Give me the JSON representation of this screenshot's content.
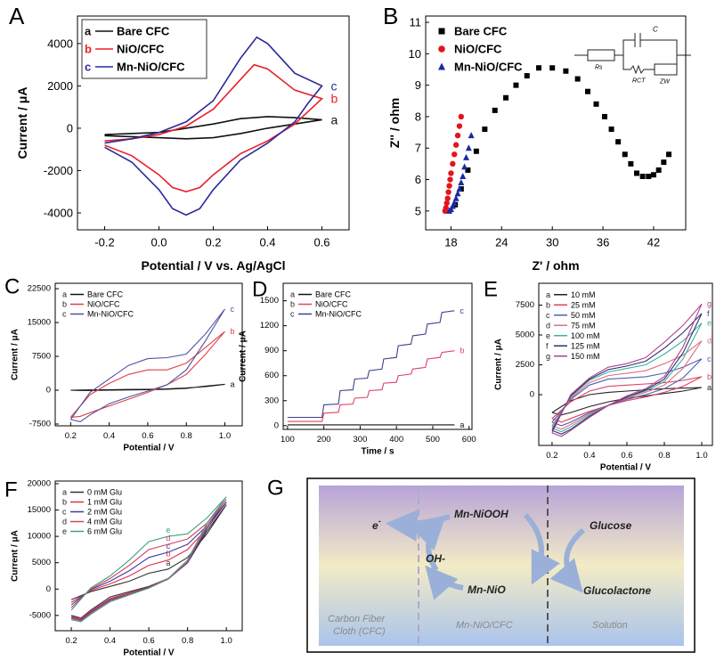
{
  "chart_data": [
    {
      "type": "line",
      "panel": "A",
      "xlabel": "Potential / V vs. Ag/AgCl",
      "ylabel": "Current / μA",
      "xlim": [
        -0.3,
        0.7
      ],
      "ylim": [
        -4800,
        5300
      ],
      "xticks": [
        -0.2,
        {
          "value": 0,
          "label": "0.0"
        },
        0.2,
        0.4,
        0.6
      ],
      "yticks": [
        -4000,
        -2000,
        0,
        2000,
        4000
      ],
      "legend": "upper left",
      "series": [
        {
          "name": "Bare CFC",
          "tag": "a",
          "color": "#111111",
          "x": [
            -0.2,
            0,
            0.2,
            0.3,
            0.4,
            0.5,
            0.6,
            0.5,
            0.4,
            0.3,
            0.2,
            0.1,
            0,
            -0.2
          ],
          "values": [
            -300,
            -200,
            200,
            450,
            550,
            500,
            400,
            200,
            0,
            -250,
            -450,
            -500,
            -450,
            -350
          ]
        },
        {
          "name": "NiO/CFC",
          "tag": "b",
          "color": "#e8202a",
          "x": [
            -0.2,
            -0.1,
            0,
            0.1,
            0.2,
            0.3,
            0.35,
            0.4,
            0.5,
            0.6,
            0.55,
            0.5,
            0.4,
            0.3,
            0.2,
            0.15,
            0.1,
            0.05,
            0,
            -0.1,
            -0.2
          ],
          "values": [
            -600,
            -500,
            -300,
            100,
            900,
            2300,
            3000,
            2800,
            1800,
            1400,
            800,
            200,
            -600,
            -1200,
            -2200,
            -2800,
            -3000,
            -2800,
            -2200,
            -1300,
            -800
          ]
        },
        {
          "name": "Mn-NiO/CFC",
          "tag": "c",
          "color": "#2a2a9a",
          "x": [
            -0.2,
            -0.1,
            0,
            0.1,
            0.2,
            0.3,
            0.36,
            0.4,
            0.5,
            0.6,
            0.55,
            0.5,
            0.4,
            0.3,
            0.2,
            0.15,
            0.1,
            0.05,
            0,
            -0.1,
            -0.2
          ],
          "values": [
            -700,
            -500,
            -200,
            300,
            1300,
            3300,
            4300,
            4000,
            2600,
            2000,
            1200,
            300,
            -700,
            -1500,
            -2900,
            -3800,
            -4100,
            -3800,
            -2900,
            -1600,
            -900
          ]
        }
      ]
    },
    {
      "type": "scatter",
      "panel": "B",
      "xlabel": "Z' / ohm",
      "ylabel": "Z'' / ohm",
      "xlim": [
        15,
        45.8
      ],
      "ylim": [
        4.4,
        11.2
      ],
      "xticks": [
        18,
        24,
        30,
        36,
        42
      ],
      "yticks": [
        5,
        6,
        7,
        8,
        9,
        10,
        11
      ],
      "legend": "upper left",
      "inset_labels": [
        "C",
        "Rs",
        "RCT",
        "ZW"
      ],
      "series": [
        {
          "name": "Bare CFC",
          "color": "#000000",
          "marker": "square",
          "x": [
            18.5,
            19.2,
            20.0,
            21.0,
            22.0,
            23.2,
            24.5,
            25.7,
            27.0,
            28.4,
            30.0,
            31.6,
            33.0,
            34.2,
            35.2,
            36.2,
            37.0,
            37.8,
            38.6,
            39.3,
            40.0,
            40.7,
            41.4,
            42.0,
            42.6,
            43.2,
            43.8
          ],
          "values": [
            5.2,
            5.7,
            6.3,
            6.9,
            7.6,
            8.2,
            8.6,
            9.0,
            9.3,
            9.55,
            9.55,
            9.45,
            9.2,
            8.8,
            8.4,
            8.0,
            7.6,
            7.2,
            6.8,
            6.5,
            6.2,
            6.1,
            6.1,
            6.15,
            6.3,
            6.55,
            6.8
          ]
        },
        {
          "name": "NiO/CFC",
          "color": "#e3141c",
          "marker": "circle",
          "x": [
            17.3,
            17.4,
            17.5,
            17.6,
            17.7,
            17.8,
            17.9,
            18.0,
            18.2,
            18.4,
            18.6,
            18.8,
            19.0,
            19.2
          ],
          "values": [
            5.0,
            5.1,
            5.25,
            5.4,
            5.6,
            5.8,
            6.0,
            6.2,
            6.5,
            6.8,
            7.1,
            7.4,
            7.7,
            8.0
          ]
        },
        {
          "name": "Mn-NiO/CFC",
          "color": "#1a2aa0",
          "marker": "triangle",
          "x": [
            17.8,
            18.0,
            18.2,
            18.4,
            18.6,
            18.8,
            19.0,
            19.2,
            19.4,
            19.6,
            19.8,
            20.1,
            20.4
          ],
          "values": [
            5.0,
            5.05,
            5.15,
            5.25,
            5.4,
            5.55,
            5.7,
            5.9,
            6.1,
            6.4,
            6.7,
            7.0,
            7.4
          ]
        }
      ]
    },
    {
      "type": "line",
      "panel": "C",
      "xlabel": "Potential / V",
      "ylabel": "Current / μA",
      "xlim": [
        0.12,
        1.09
      ],
      "ylim": [
        -7900,
        23700
      ],
      "xticks": [
        0.2,
        0.4,
        0.6,
        0.8,
        {
          "value": 1,
          "label": "1.0"
        }
      ],
      "yticks": [
        -7500,
        0,
        7500,
        15000,
        22500
      ],
      "legend": "upper left",
      "x": [
        0.2,
        0.3,
        0.4,
        0.5,
        0.6,
        0.7,
        0.8,
        0.9,
        1.0,
        0.9,
        0.8,
        0.7,
        0.6,
        0.5,
        0.4,
        0.3,
        0.25,
        0.2
      ],
      "series": [
        {
          "name": "Bare CFC",
          "tag": "a",
          "color": "#111111",
          "values": [
            0,
            50,
            100,
            150,
            200,
            300,
            500,
            800,
            1300,
            900,
            400,
            200,
            100,
            50,
            0,
            -50,
            -50,
            0
          ]
        },
        {
          "name": "NiO/CFC",
          "tag": "b",
          "color": "#e0404a",
          "values": [
            -6000,
            -1000,
            1500,
            3500,
            4500,
            4500,
            6000,
            9500,
            13000,
            8000,
            3500,
            1200,
            -500,
            -2000,
            -3500,
            -5000,
            -5800,
            -6000
          ]
        },
        {
          "name": "Mn-NiO/CFC",
          "tag": "c",
          "color": "#5050a0",
          "values": [
            -6500,
            -500,
            2500,
            5500,
            7000,
            7200,
            8000,
            12500,
            18000,
            11000,
            4500,
            1200,
            -200,
            -1500,
            -3000,
            -5500,
            -7000,
            -6500
          ]
        }
      ]
    },
    {
      "type": "line",
      "panel": "D",
      "xlabel": "Time / s",
      "ylabel": "Current / μA",
      "xlim": [
        88,
        608
      ],
      "ylim": [
        -45,
        1710
      ],
      "xticks": [
        100,
        200,
        300,
        400,
        500,
        600
      ],
      "yticks": [
        0,
        300,
        600,
        900,
        1200,
        1500
      ],
      "legend": "upper left",
      "series": [
        {
          "name": "Bare CFC",
          "tag": "a",
          "color": "#111111",
          "x": [
            100,
            560
          ],
          "values": [
            10,
            10
          ]
        },
        {
          "name": "NiO/CFC",
          "tag": "b",
          "color": "#e0406a",
          "x": [
            100,
            195,
            200,
            240,
            245,
            280,
            285,
            320,
            325,
            360,
            365,
            400,
            405,
            440,
            445,
            480,
            485,
            520,
            525,
            560
          ],
          "values": [
            50,
            50,
            150,
            160,
            250,
            260,
            330,
            340,
            420,
            430,
            510,
            520,
            600,
            620,
            680,
            700,
            800,
            820,
            880,
            900
          ]
        },
        {
          "name": "Mn-NiO/CFC",
          "tag": "c",
          "color": "#40408a",
          "x": [
            100,
            195,
            200,
            240,
            245,
            280,
            285,
            320,
            325,
            360,
            365,
            400,
            405,
            440,
            445,
            480,
            485,
            520,
            525,
            560
          ],
          "values": [
            100,
            100,
            250,
            260,
            420,
            430,
            560,
            570,
            660,
            680,
            800,
            820,
            960,
            980,
            1080,
            1100,
            1220,
            1240,
            1360,
            1380
          ]
        }
      ]
    },
    {
      "type": "line",
      "panel": "E",
      "xlabel": "Potential / V",
      "ylabel": "Current / μA",
      "xlim": [
        0.129,
        1.057
      ],
      "ylim": [
        -4250,
        9330
      ],
      "xticks": [
        0.2,
        0.4,
        0.6,
        0.8,
        {
          "value": 1,
          "label": "1.0"
        }
      ],
      "yticks": [
        0,
        2500,
        5000,
        7500
      ],
      "legend": "upper left",
      "x": [
        0.2,
        0.3,
        0.4,
        0.5,
        0.6,
        0.7,
        0.8,
        0.9,
        1.0,
        0.9,
        0.8,
        0.7,
        0.6,
        0.5,
        0.4,
        0.3,
        0.25,
        0.2
      ],
      "series": [
        {
          "name": "10 mM",
          "tag": "a",
          "color": "#222222",
          "values": [
            -1500,
            -500,
            0,
            200,
            300,
            400,
            500,
            550,
            600,
            300,
            100,
            -100,
            -300,
            -600,
            -1000,
            -1500,
            -1700,
            -1500
          ]
        },
        {
          "name": "25 mM",
          "tag": "b",
          "color": "#e04060",
          "values": [
            -2000,
            -600,
            300,
            700,
            800,
            900,
            1000,
            1200,
            1500,
            700,
            200,
            -200,
            -500,
            -900,
            -1400,
            -2000,
            -2300,
            -2000
          ]
        },
        {
          "name": "50 mM",
          "tag": "c",
          "color": "#5060b0",
          "values": [
            -2300,
            -400,
            800,
            1300,
            1400,
            1500,
            1800,
            2300,
            3000,
            1400,
            500,
            0,
            -400,
            -900,
            -1500,
            -2300,
            -2600,
            -2300
          ]
        },
        {
          "name": "75 mM",
          "tag": "d",
          "color": "#e07080",
          "values": [
            -2600,
            -300,
            1000,
            1600,
            1800,
            2000,
            2600,
            3300,
            4500,
            2200,
            800,
            200,
            -300,
            -900,
            -1600,
            -2500,
            -2900,
            -2600
          ]
        },
        {
          "name": "100 mM",
          "tag": "e",
          "color": "#40b0a0",
          "values": [
            -2800,
            -200,
            1200,
            1900,
            2200,
            2500,
            3400,
            4500,
            6000,
            3000,
            1100,
            300,
            -200,
            -900,
            -1700,
            -2700,
            -3100,
            -2800
          ]
        },
        {
          "name": "125 mM",
          "tag": "f",
          "color": "#303070",
          "values": [
            -3000,
            -100,
            1300,
            2100,
            2400,
            2800,
            3900,
            5200,
            6800,
            3500,
            1300,
            400,
            -200,
            -900,
            -1800,
            -2900,
            -3300,
            -3000
          ]
        },
        {
          "name": "150 mM",
          "tag": "g",
          "color": "#b04090",
          "values": [
            -3200,
            0,
            1400,
            2300,
            2600,
            3100,
            4400,
            5800,
            7600,
            4000,
            1500,
            500,
            -100,
            -900,
            -1900,
            -3000,
            -3500,
            -3200
          ]
        }
      ]
    },
    {
      "type": "line",
      "panel": "F",
      "xlabel": "Potential / V",
      "ylabel": "Current / μA",
      "xlim": [
        0.117,
        1.082
      ],
      "ylim": [
        -7900,
        20500
      ],
      "xticks": [
        0.2,
        0.4,
        0.6,
        0.8,
        {
          "value": 1,
          "label": "1.0"
        }
      ],
      "yticks": [
        -5000,
        0,
        5000,
        10000,
        15000,
        20000
      ],
      "legend": "upper left",
      "x": [
        0.2,
        0.3,
        0.4,
        0.5,
        0.6,
        0.7,
        0.8,
        0.9,
        1.0,
        0.9,
        0.8,
        0.7,
        0.6,
        0.5,
        0.4,
        0.3,
        0.25,
        0.2
      ],
      "series": [
        {
          "name": "0 mM Glu",
          "tag": "a",
          "color": "#333333",
          "values": [
            -2000,
            -500,
            500,
            1500,
            3000,
            3800,
            6000,
            10500,
            16000,
            11000,
            5000,
            2000,
            500,
            -500,
            -1500,
            -4000,
            -5500,
            -5000
          ]
        },
        {
          "name": "1 mM Glu",
          "tag": "b",
          "color": "#e0304a",
          "values": [
            -2500,
            -300,
            1000,
            2500,
            4500,
            5500,
            7500,
            11500,
            16500,
            11500,
            5000,
            2000,
            400,
            -700,
            -1800,
            -4200,
            -5600,
            -5200
          ]
        },
        {
          "name": "2 mM Glu",
          "tag": "c",
          "color": "#3a3aa0",
          "values": [
            -3000,
            -100,
            1500,
            3500,
            6000,
            7000,
            8500,
            12000,
            16500,
            11500,
            5000,
            1900,
            300,
            -900,
            -2000,
            -4400,
            -5800,
            -5400
          ]
        },
        {
          "name": "4 mM Glu",
          "tag": "d",
          "color": "#d04060",
          "values": [
            -3500,
            0,
            2000,
            4500,
            7500,
            8500,
            9500,
            12500,
            17000,
            12000,
            5200,
            1900,
            200,
            -1000,
            -2200,
            -4600,
            -6000,
            -5600
          ]
        },
        {
          "name": "6 mM Glu",
          "tag": "e",
          "color": "#40a080",
          "values": [
            -4000,
            200,
            2500,
            5500,
            9000,
            10000,
            10500,
            13500,
            17500,
            12500,
            5500,
            2000,
            200,
            -1100,
            -2400,
            -4800,
            -6200,
            -5800
          ]
        }
      ]
    }
  ],
  "diagram": {
    "panel": "G",
    "electron": "e",
    "electron_charge": "-",
    "oxidized": "Mn-NiOOH",
    "hydroxide": "OH-",
    "reduced": "Mn-NiO",
    "glucose": "Glucose",
    "product": "Glucolactone",
    "substrate": [
      "Carbon Fiber",
      "Cloth  (CFC)"
    ],
    "electrode": "Mn-NiO/CFC",
    "solution": "Solution"
  }
}
